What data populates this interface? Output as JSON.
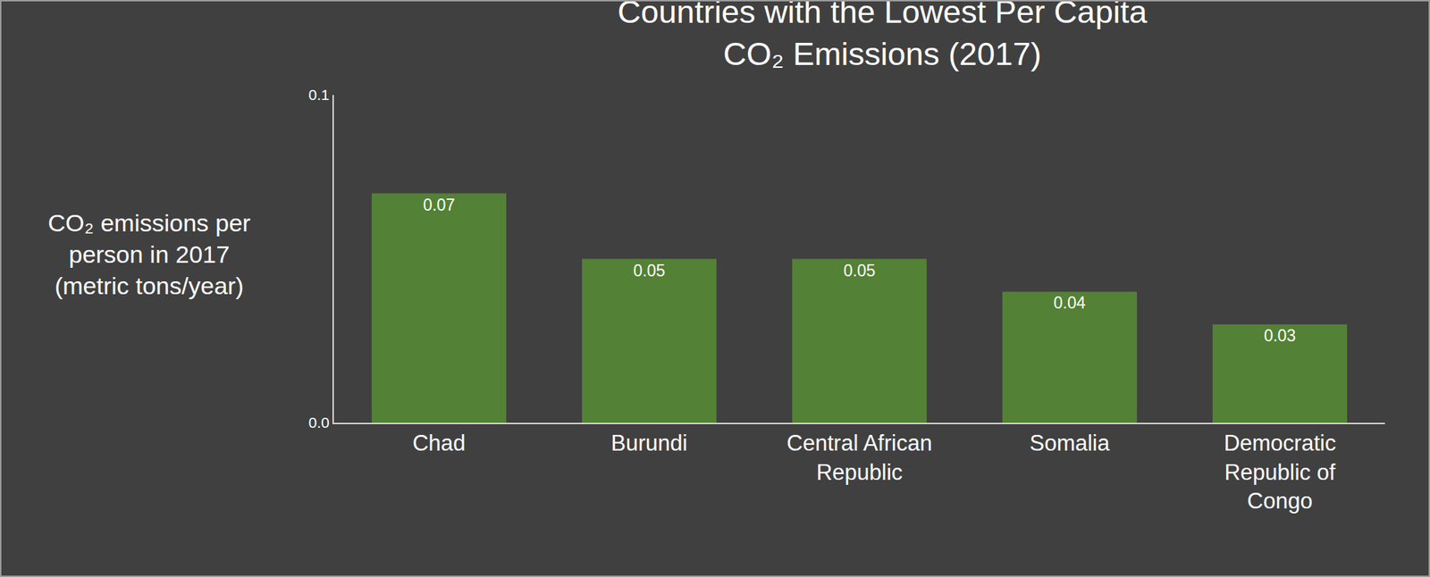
{
  "chart_data": {
    "type": "bar",
    "title": "Countries with the Lowest Per Capita CO₂ Emissions (2017)",
    "y_label": "CO₂ emissions per person in 2017 (metric tons/year)",
    "categories": [
      "Chad",
      "Burundi",
      "Central African Republic",
      "Somalia",
      "Democratic Republic of Congo"
    ],
    "values": [
      0.07,
      0.05,
      0.05,
      0.04,
      0.03
    ],
    "color": "#538135",
    "ylim": [
      0,
      0.1
    ],
    "yticks": [
      {
        "value": 0,
        "label": "0.0"
      },
      0.1
    ],
    "grid": false,
    "data_labels": true
  }
}
